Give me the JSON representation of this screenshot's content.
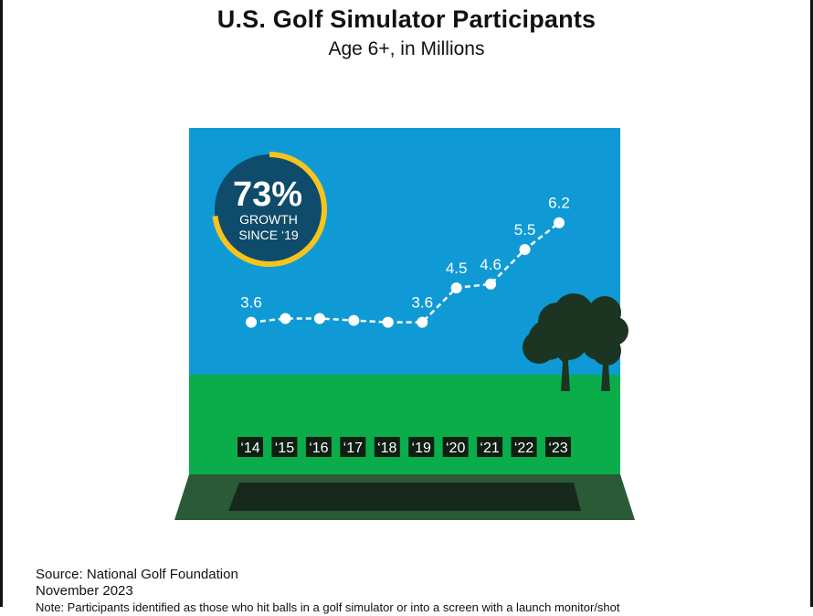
{
  "title": "U.S. Golf Simulator Participants",
  "subtitle": "Age 6+, in Millions",
  "badge": {
    "percent": "73%",
    "line1": "GROWTH",
    "line2": "SINCE ‘19",
    "growth_fraction": 0.73
  },
  "chart_data": {
    "type": "line",
    "title": "U.S. Golf Simulator Participants",
    "subtitle": "Age 6+, in Millions",
    "categories": [
      "‘14",
      "‘15",
      "‘16",
      "‘17",
      "‘18",
      "‘19",
      "‘20",
      "‘21",
      "‘22",
      "‘23"
    ],
    "values": [
      3.6,
      3.7,
      3.7,
      3.65,
      3.6,
      3.6,
      4.5,
      4.6,
      5.5,
      6.2
    ],
    "data_labels": [
      "3.6",
      "",
      "",
      "",
      "",
      "3.6",
      "4.5",
      "4.6",
      "5.5",
      "6.2"
    ],
    "ylim": [
      2.0,
      6.6
    ],
    "grid": false,
    "colors": {
      "sky": "#0f9ad6",
      "grass": "#0bad4a",
      "mat": "#2b5a37",
      "mat_slot": "#17291c",
      "line": "#ffffff",
      "tree": "#1c3522",
      "badge_fill": "#0f4b6a",
      "badge_ring": "#f7c31d",
      "tick_bg": "#0d1f12"
    }
  },
  "source": {
    "line1": "Source: National Golf Foundation",
    "line2": "November 2023",
    "line3": "Note: Participants identified as those who hit balls in a golf simulator or into a screen with a launch monitor/shot"
  }
}
